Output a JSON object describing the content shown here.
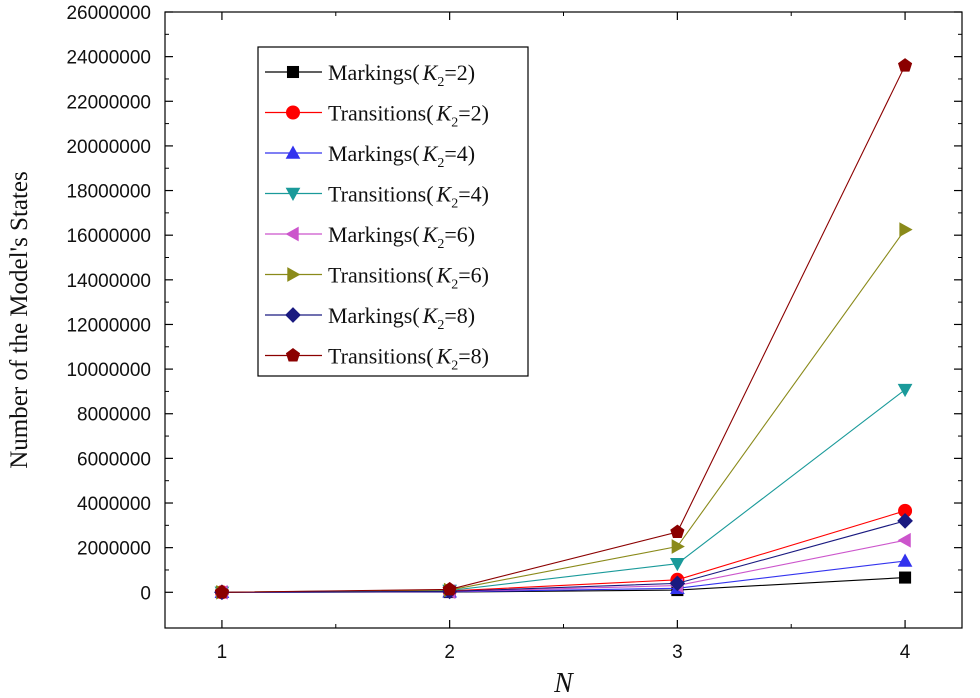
{
  "chart_data": {
    "type": "line",
    "title": "",
    "xlabel": "N",
    "ylabel": "Number of the Model's States",
    "x": [
      1,
      2,
      3,
      4
    ],
    "xlim": [
      0.75,
      4.25
    ],
    "ylim": [
      -1600000,
      26000000
    ],
    "x_ticks": [
      "1",
      "2",
      "3",
      "4"
    ],
    "y_ticks": [
      "0",
      "2000000",
      "4000000",
      "6000000",
      "8000000",
      "10000000",
      "12000000",
      "14000000",
      "16000000",
      "18000000",
      "20000000",
      "22000000",
      "24000000",
      "26000000"
    ],
    "legend_position": "top-left",
    "grid": false,
    "series": [
      {
        "name": "Markings(K2=2)",
        "prefix": "Markings(",
        "var": "K",
        "sub": "2",
        "suffix": "=2)",
        "color": "#000000",
        "marker": "square",
        "values": [
          0,
          10000,
          100000,
          660000
        ]
      },
      {
        "name": "Transitions(K2=2)",
        "prefix": "Transitions(",
        "var": "K",
        "sub": "2",
        "suffix": "=2)",
        "color": "#ff0000",
        "marker": "circle",
        "values": [
          0,
          60000,
          560000,
          3650000
        ]
      },
      {
        "name": "Markings(K2=4)",
        "prefix": "Markings(",
        "var": "K",
        "sub": "2",
        "suffix": "=4)",
        "color": "#3333ee",
        "marker": "triangle-up",
        "values": [
          0,
          20000,
          180000,
          1400000
        ]
      },
      {
        "name": "Transitions(K2=4)",
        "prefix": "Transitions(",
        "var": "K",
        "sub": "2",
        "suffix": "=4)",
        "color": "#1a9a9a",
        "marker": "triangle-down",
        "values": [
          0,
          80000,
          1280000,
          9080000
        ]
      },
      {
        "name": "Markings(K2=6)",
        "prefix": "Markings(",
        "var": "K",
        "sub": "2",
        "suffix": "=6)",
        "color": "#cc55cc",
        "marker": "triangle-left",
        "values": [
          0,
          30000,
          300000,
          2330000
        ]
      },
      {
        "name": "Transitions(K2=6)",
        "prefix": "Transitions(",
        "var": "K",
        "sub": "2",
        "suffix": "=6)",
        "color": "#8a8a1a",
        "marker": "triangle-right",
        "values": [
          0,
          100000,
          2050000,
          16250000
        ]
      },
      {
        "name": "Markings(K2=8)",
        "prefix": "Markings(",
        "var": "K",
        "sub": "2",
        "suffix": "=8)",
        "color": "#1a1a80",
        "marker": "diamond",
        "values": [
          0,
          40000,
          400000,
          3200000
        ]
      },
      {
        "name": "Transitions(K2=8)",
        "prefix": "Transitions(",
        "var": "K",
        "sub": "2",
        "suffix": "=8)",
        "color": "#8b0000",
        "marker": "pentagon",
        "values": [
          0,
          130000,
          2700000,
          23600000
        ]
      }
    ]
  }
}
